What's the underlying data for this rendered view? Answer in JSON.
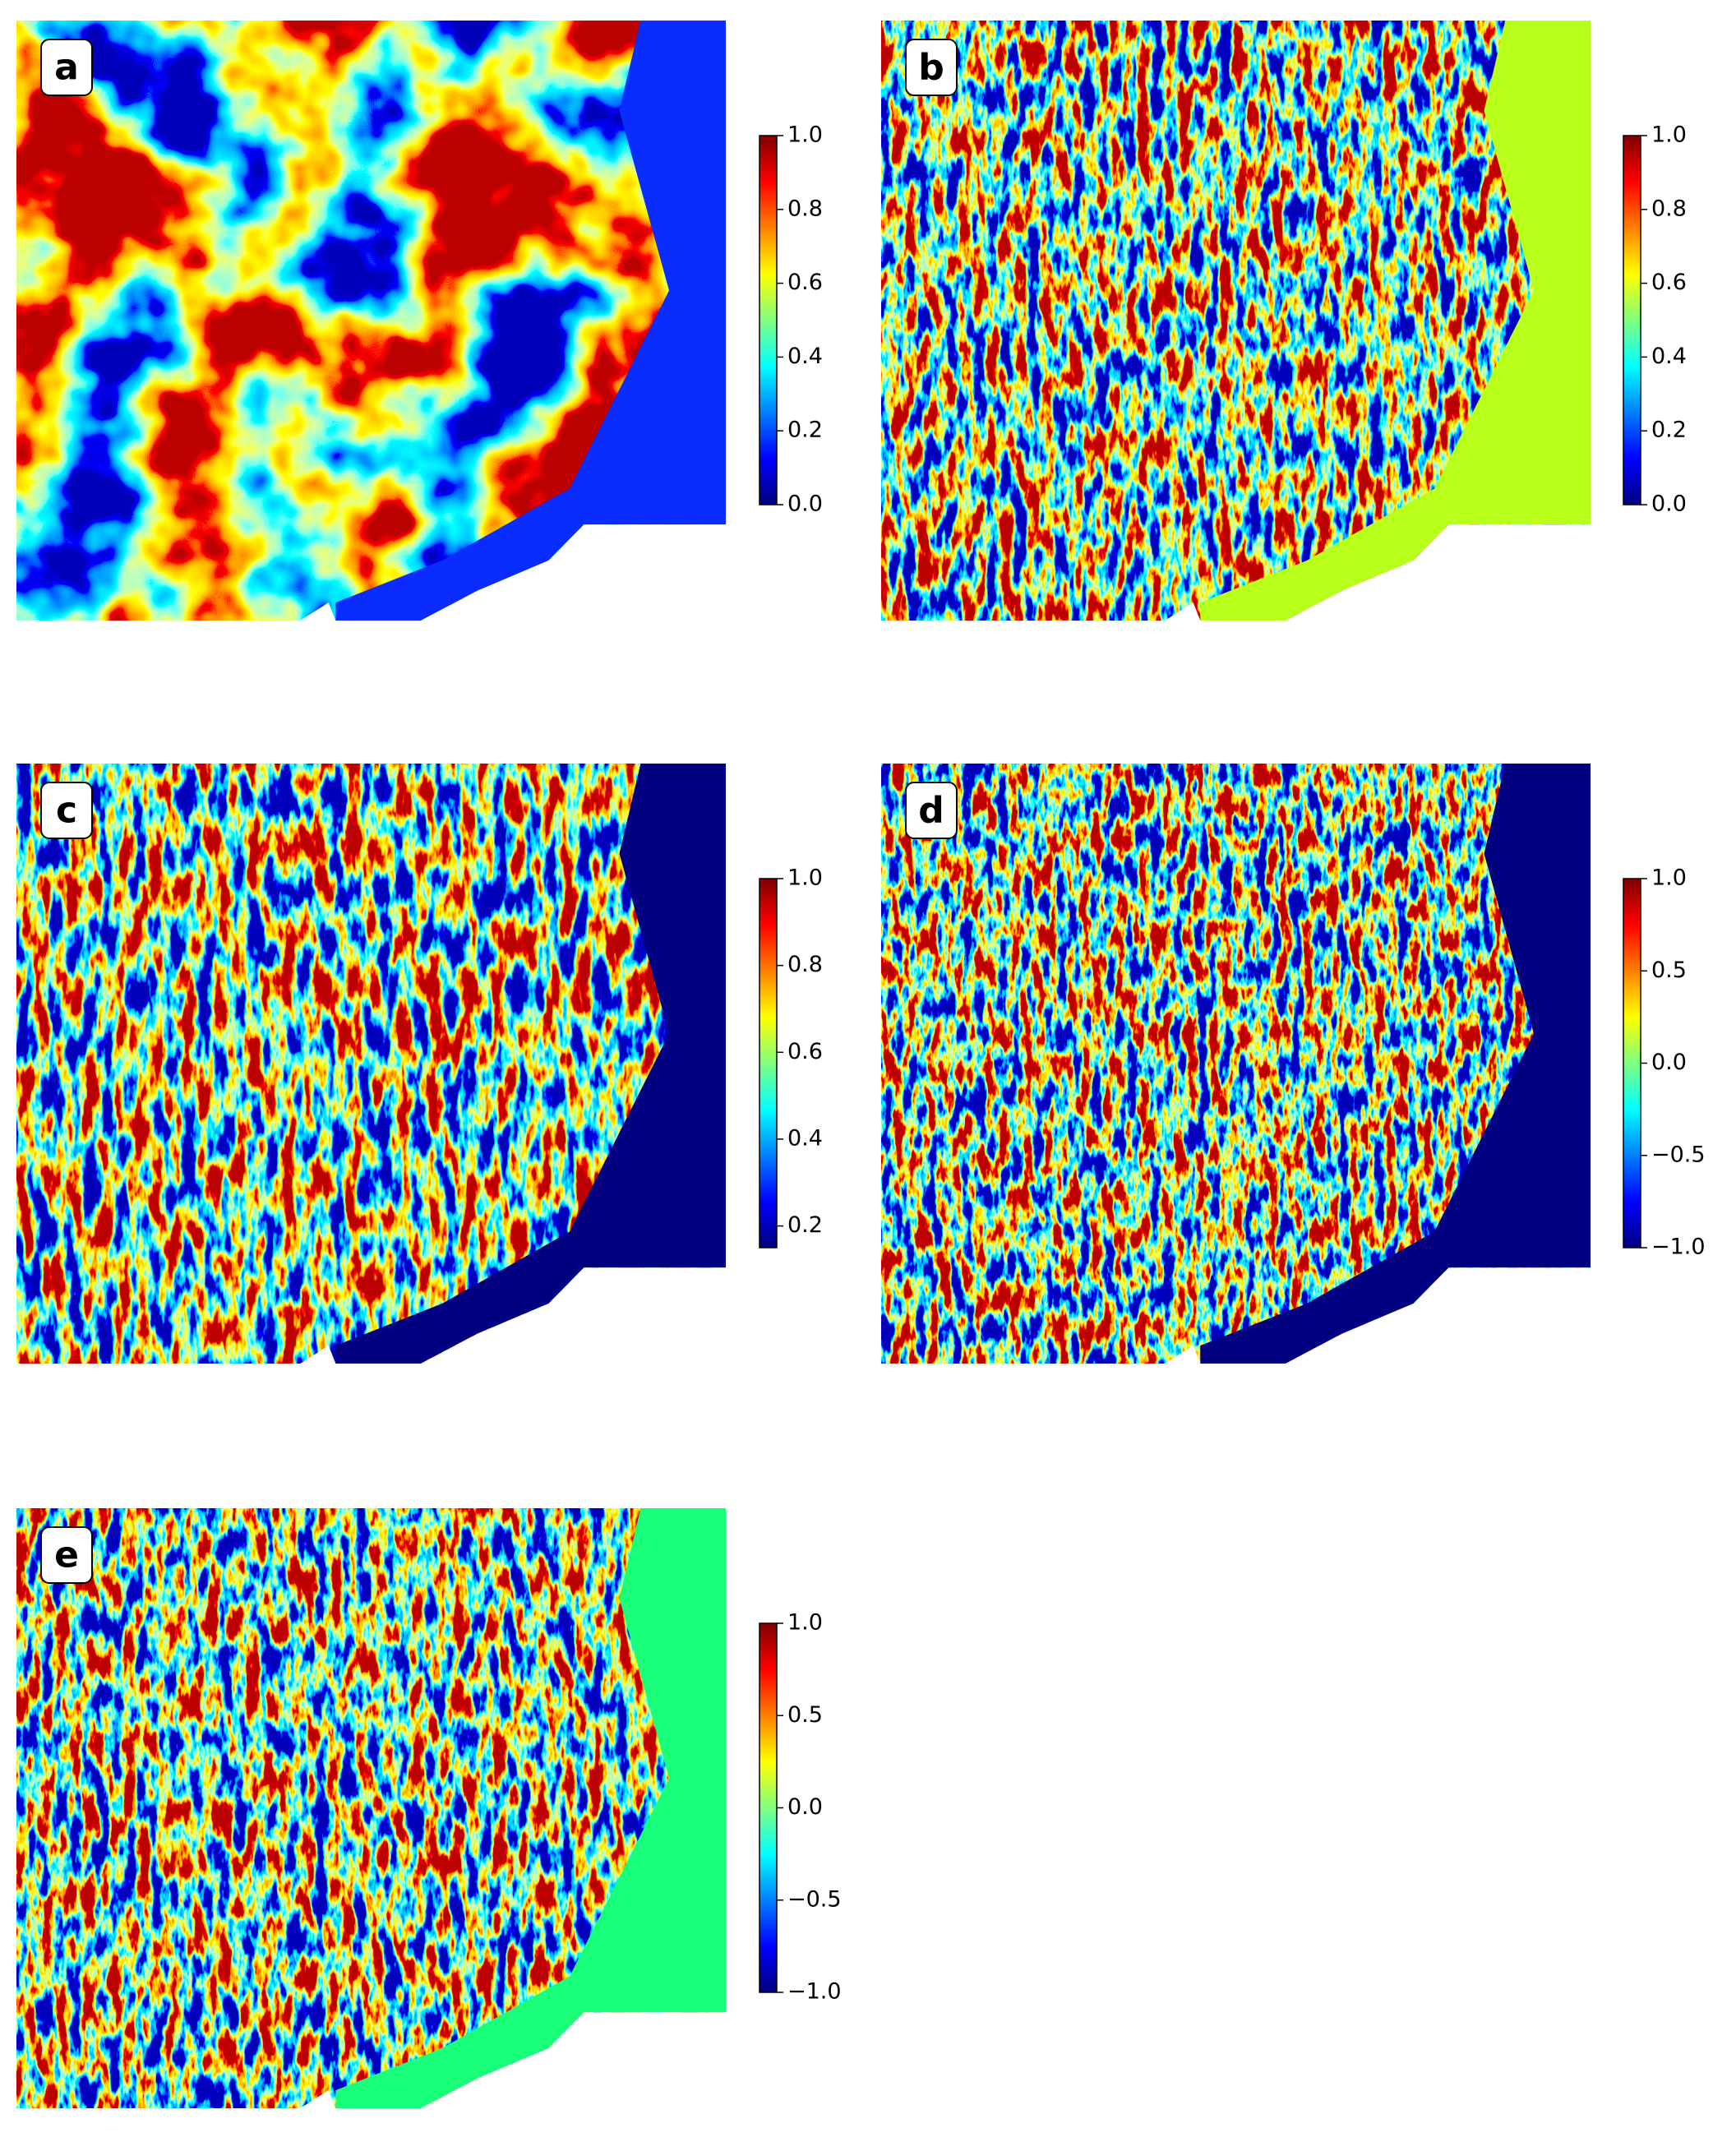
{
  "panels": [
    {
      "label": "a",
      "colorbar": {
        "lim": [
          0,
          1
        ],
        "ticks": [
          {
            "value": 0,
            "label": "0.0"
          },
          0.2,
          0.4,
          0.6,
          0.8,
          {
            "value": 1,
            "label": "1.0"
          }
        ]
      }
    },
    {
      "label": "b",
      "colorbar": {
        "lim": [
          0,
          1
        ],
        "ticks": [
          {
            "value": 0,
            "label": "0.0"
          },
          0.2,
          0.4,
          0.6,
          0.8,
          {
            "value": 1,
            "label": "1.0"
          }
        ]
      }
    },
    {
      "label": "c",
      "colorbar": {
        "lim": [
          0.15,
          1
        ],
        "ticks": [
          0.2,
          0.4,
          0.6,
          0.8,
          {
            "value": 1,
            "label": "1.0"
          }
        ]
      }
    },
    {
      "label": "d",
      "colorbar": {
        "lim": [
          -1,
          1
        ],
        "ticks": [
          {
            "value": -1,
            "label": "−1.0"
          },
          {
            "value": -0.5,
            "label": "−0.5"
          },
          {
            "value": 0,
            "label": "0.0"
          },
          0.5,
          {
            "value": 1,
            "label": "1.0"
          }
        ]
      }
    },
    {
      "label": "e",
      "colorbar": {
        "lim": [
          -1,
          1
        ],
        "ticks": [
          {
            "value": -1,
            "label": "−1.0"
          },
          {
            "value": -0.5,
            "label": "−0.5"
          },
          {
            "value": 0,
            "label": "0.0"
          },
          0.5,
          {
            "value": 1,
            "label": "1.0"
          }
        ]
      }
    }
  ]
}
